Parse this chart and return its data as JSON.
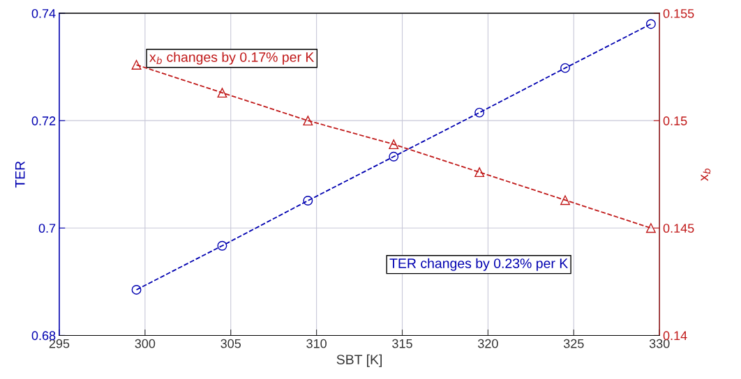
{
  "chart_data": {
    "type": "line",
    "xlabel": "SBT [K]",
    "ylabel": "TER",
    "y2label": "x$_{b}$",
    "x": [
      299.5,
      304.5,
      309.5,
      314.5,
      319.5,
      324.5,
      329.5
    ],
    "series": [
      {
        "color": "#0000b0",
        "marker": "circle",
        "line_style": "dashed",
        "values": [
          0.6885,
          0.6967,
          0.7051,
          0.7133,
          0.7215,
          0.7298,
          0.738
        ]
      },
      {
        "color": "#c01818",
        "marker": "triangle",
        "line_style": "dashed",
        "axis": "y2",
        "values": [
          0.1526,
          0.1513,
          0.15,
          0.1489,
          0.1476,
          0.1463,
          0.145
        ]
      }
    ],
    "xlim": [
      295,
      330
    ],
    "xticks": [
      295,
      300,
      305,
      310,
      315,
      320,
      325,
      330
    ],
    "ylim": [
      0.68,
      0.74
    ],
    "yticks": [
      0.68,
      0.7,
      0.72,
      0.74
    ],
    "y2lim": [
      0.14,
      0.155
    ],
    "y2ticks": [
      0.14,
      0.145,
      0.15,
      0.155
    ],
    "grid": true,
    "annotations": [
      "x$_{b}$ changes by 0.17% per K",
      "TER changes by 0.23% per K"
    ]
  }
}
